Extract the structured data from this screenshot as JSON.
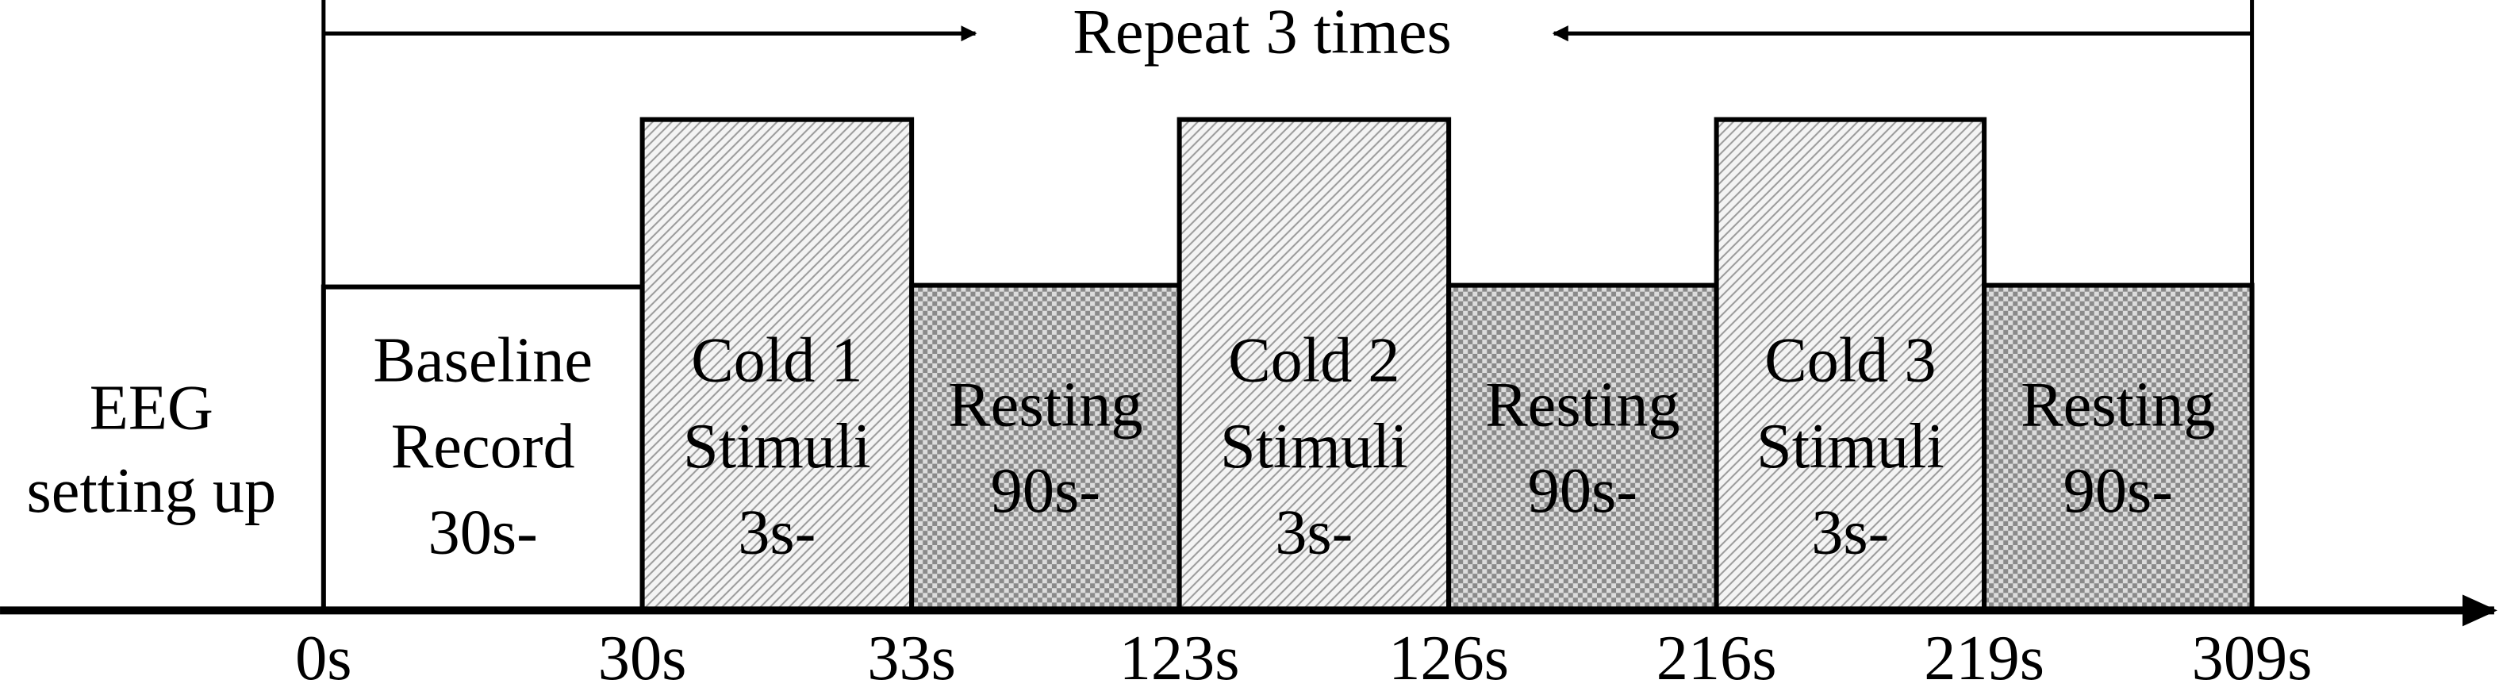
{
  "header": {
    "title": "Repeat 3 times"
  },
  "setup": {
    "lines": [
      "EEG",
      "setting up"
    ]
  },
  "blocks": [
    {
      "lines": [
        "Baseline",
        "Record",
        "30s-"
      ]
    },
    {
      "lines": [
        "Cold 1",
        "Stimuli",
        "3s-"
      ]
    },
    {
      "lines": [
        "Resting",
        "90s-"
      ]
    },
    {
      "lines": [
        "Cold 2",
        "Stimuli",
        "3s-"
      ]
    },
    {
      "lines": [
        "Resting",
        "90s-"
      ]
    },
    {
      "lines": [
        "Cold 3",
        "Stimuli",
        "3s-"
      ]
    },
    {
      "lines": [
        "Resting",
        "90s-"
      ]
    }
  ],
  "timeline": {
    "labels": [
      "0s",
      "30s",
      "33s",
      "123s",
      "126s",
      "216s",
      "219s",
      "309s"
    ]
  }
}
